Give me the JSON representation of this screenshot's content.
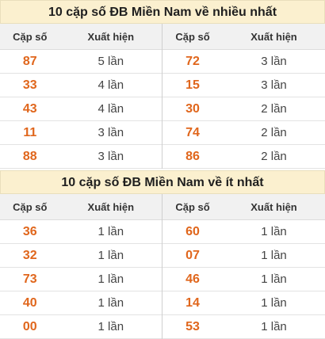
{
  "sections": [
    {
      "title": "10 cặp số ĐB Miền Nam về nhiều nhất",
      "header": {
        "pair": "Cặp số",
        "count": "Xuất hiện"
      },
      "left": [
        {
          "pair": "87",
          "count": "5 lần"
        },
        {
          "pair": "33",
          "count": "4 lần"
        },
        {
          "pair": "43",
          "count": "4 lần"
        },
        {
          "pair": "11",
          "count": "3 lần"
        },
        {
          "pair": "88",
          "count": "3 lần"
        }
      ],
      "right": [
        {
          "pair": "72",
          "count": "3 lần"
        },
        {
          "pair": "15",
          "count": "3 lần"
        },
        {
          "pair": "30",
          "count": "2 lần"
        },
        {
          "pair": "74",
          "count": "2 lần"
        },
        {
          "pair": "86",
          "count": "2 lần"
        }
      ]
    },
    {
      "title": "10 cặp số ĐB Miền Nam về ít nhất",
      "header": {
        "pair": "Cặp số",
        "count": "Xuất hiện"
      },
      "left": [
        {
          "pair": "36",
          "count": "1 lần"
        },
        {
          "pair": "32",
          "count": "1 lần"
        },
        {
          "pair": "73",
          "count": "1 lần"
        },
        {
          "pair": "40",
          "count": "1 lần"
        },
        {
          "pair": "00",
          "count": "1 lần"
        }
      ],
      "right": [
        {
          "pair": "60",
          "count": "1 lần"
        },
        {
          "pair": "07",
          "count": "1 lần"
        },
        {
          "pair": "46",
          "count": "1 lần"
        },
        {
          "pair": "14",
          "count": "1 lần"
        },
        {
          "pair": "53",
          "count": "1 lần"
        }
      ]
    }
  ]
}
